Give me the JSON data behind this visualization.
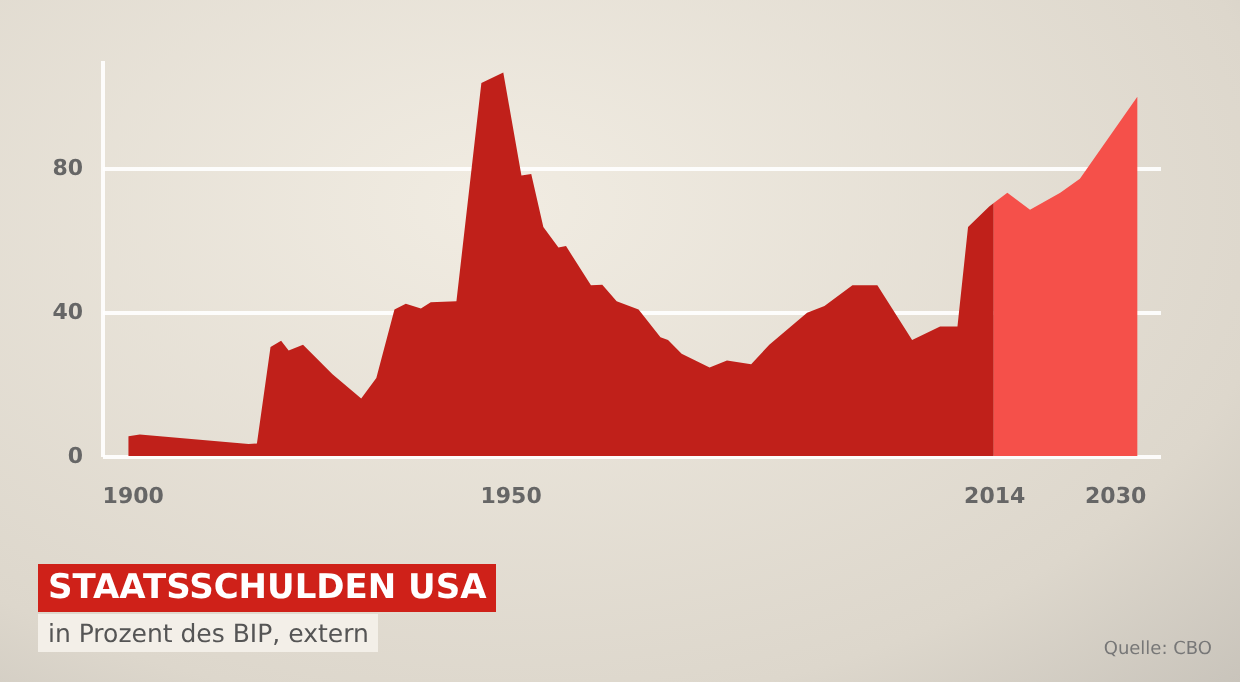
{
  "chart_data": {
    "type": "area",
    "title": "STAATSSCHULDEN USA",
    "subtitle": "in Prozent des BIP, extern",
    "annotations": [
      "Quelle: CBO"
    ],
    "series": [
      {
        "color": "#c0201a",
        "x": [
          1899.5,
          1901,
          1915.4,
          1916.5,
          1918.3,
          1919.7,
          1920.7,
          1922.6,
          1926.5,
          1930.3,
          1932.3,
          1934.7,
          1936.2,
          1938.2,
          1939.5,
          1942.9,
          1946.2,
          1949.1,
          1951.5,
          1952.8,
          1954.4,
          1956.4,
          1957.4,
          1960.7,
          1962.2,
          1964.1,
          1967,
          1969.9,
          1970.9,
          1972.7,
          1976.4,
          1978.7,
          1981.9,
          1984.3,
          1989.3,
          1991.6,
          1995.3,
          1998.6,
          2003.2,
          2006.9,
          2009.2,
          2010.6,
          2013.4,
          2014
        ],
        "values": [
          5.5,
          6,
          3.3,
          3.5,
          30.3,
          32,
          29.3,
          30.9,
          22.7,
          16,
          21.7,
          40.7,
          42.3,
          41,
          42.7,
          43,
          103.6,
          106.5,
          77.9,
          78.3,
          63.6,
          57.9,
          58.3,
          47.4,
          47.6,
          43,
          40.7,
          33,
          32.2,
          28.4,
          24.6,
          26.5,
          25.5,
          30.9,
          39.8,
          41.7,
          47.4,
          47.4,
          32.2,
          36,
          36,
          63.6,
          69.3,
          70.3
        ]
      },
      {
        "color": "#f5504a",
        "x": [
          2014,
          2015.8,
          2018.8,
          2022.8,
          2025.4,
          2033
        ],
        "values": [
          70.3,
          73.1,
          68.4,
          73.1,
          77,
          99.8
        ]
      }
    ],
    "xlim": [
      1896,
      2036
    ],
    "xticks": [
      1900,
      1950,
      2014,
      2030
    ],
    "ylim": [
      0,
      110
    ],
    "yticks": [
      0,
      40,
      80
    ],
    "grid": "y"
  }
}
